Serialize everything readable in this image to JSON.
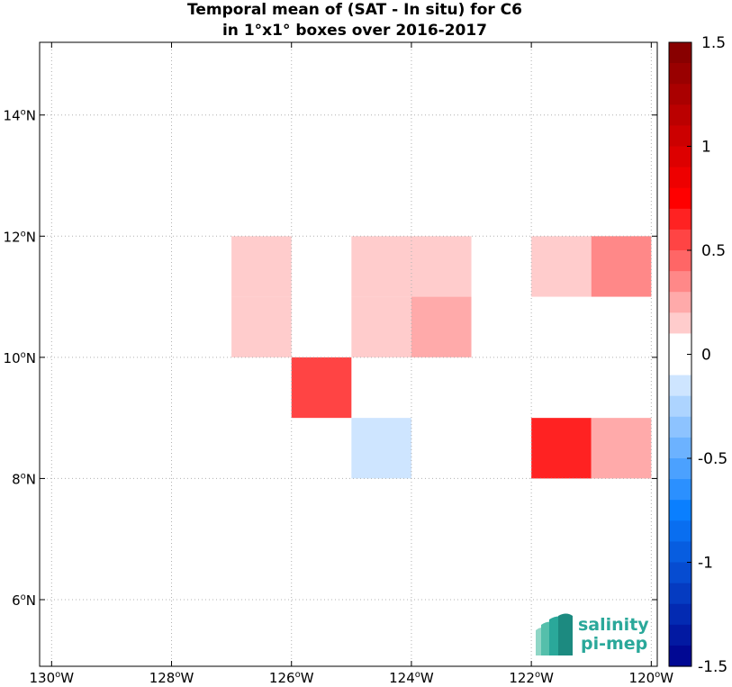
{
  "chart_data": {
    "type": "heatmap",
    "title": [
      "Temporal mean of (SAT - In situ) for C6",
      "in 1°x1° boxes over 2016-2017"
    ],
    "x_range": [
      -130.2,
      -119.9
    ],
    "y_range": [
      4.9,
      15.2
    ],
    "x_ticks": [
      {
        "value": -130,
        "label": "130",
        "deg": "o",
        "hemi": "W"
      },
      {
        "value": -128,
        "label": "128",
        "deg": "o",
        "hemi": "W"
      },
      {
        "value": -126,
        "label": "126",
        "deg": "o",
        "hemi": "W"
      },
      {
        "value": -124,
        "label": "124",
        "deg": "o",
        "hemi": "W"
      },
      {
        "value": -122,
        "label": "122",
        "deg": "o",
        "hemi": "W"
      },
      {
        "value": -120,
        "label": "120",
        "deg": "o",
        "hemi": "W"
      }
    ],
    "y_ticks": [
      {
        "value": 6,
        "label": "6",
        "deg": "o",
        "hemi": "N"
      },
      {
        "value": 8,
        "label": "8",
        "deg": "o",
        "hemi": "N"
      },
      {
        "value": 10,
        "label": "10",
        "deg": "o",
        "hemi": "N"
      },
      {
        "value": 12,
        "label": "12",
        "deg": "o",
        "hemi": "N"
      },
      {
        "value": 14,
        "label": "14",
        "deg": "o",
        "hemi": "N"
      }
    ],
    "grid": true,
    "cells": [
      {
        "lon": -127,
        "lat": 11,
        "value": 0.15
      },
      {
        "lon": -127,
        "lat": 10,
        "value": 0.15
      },
      {
        "lon": -126,
        "lat": 9,
        "value": 0.55
      },
      {
        "lon": -125,
        "lat": 11,
        "value": 0.15
      },
      {
        "lon": -125,
        "lat": 10,
        "value": 0.15
      },
      {
        "lon": -125,
        "lat": 8,
        "value": -0.15
      },
      {
        "lon": -124,
        "lat": 11,
        "value": 0.15
      },
      {
        "lon": -124,
        "lat": 10,
        "value": 0.25
      },
      {
        "lon": -122,
        "lat": 11,
        "value": 0.15
      },
      {
        "lon": -121,
        "lat": 11,
        "value": 0.35
      },
      {
        "lon": -122,
        "lat": 8,
        "value": 0.65
      },
      {
        "lon": -121,
        "lat": 8,
        "value": 0.25
      }
    ],
    "colorbar": {
      "range": [
        -1.5,
        1.5
      ],
      "ticks": [
        {
          "value": 1.5,
          "label": "1.5"
        },
        {
          "value": 1,
          "label": "1"
        },
        {
          "value": 0.5,
          "label": "0.5"
        },
        {
          "value": 0,
          "label": "0"
        },
        {
          "value": -0.5,
          "label": "-0.5"
        },
        {
          "value": -1,
          "label": "-1"
        },
        {
          "value": -1.5,
          "label": "-1.5"
        }
      ],
      "levels": 30,
      "color_low": "#00008b",
      "color_mid_low": "#0a7fff",
      "color_white": "#ffffff",
      "color_mid_high": "#ff0000",
      "color_high": "#800000"
    }
  },
  "logo": {
    "line1": "salinity",
    "line2": "pi-mep",
    "color": "#2aa89a"
  }
}
